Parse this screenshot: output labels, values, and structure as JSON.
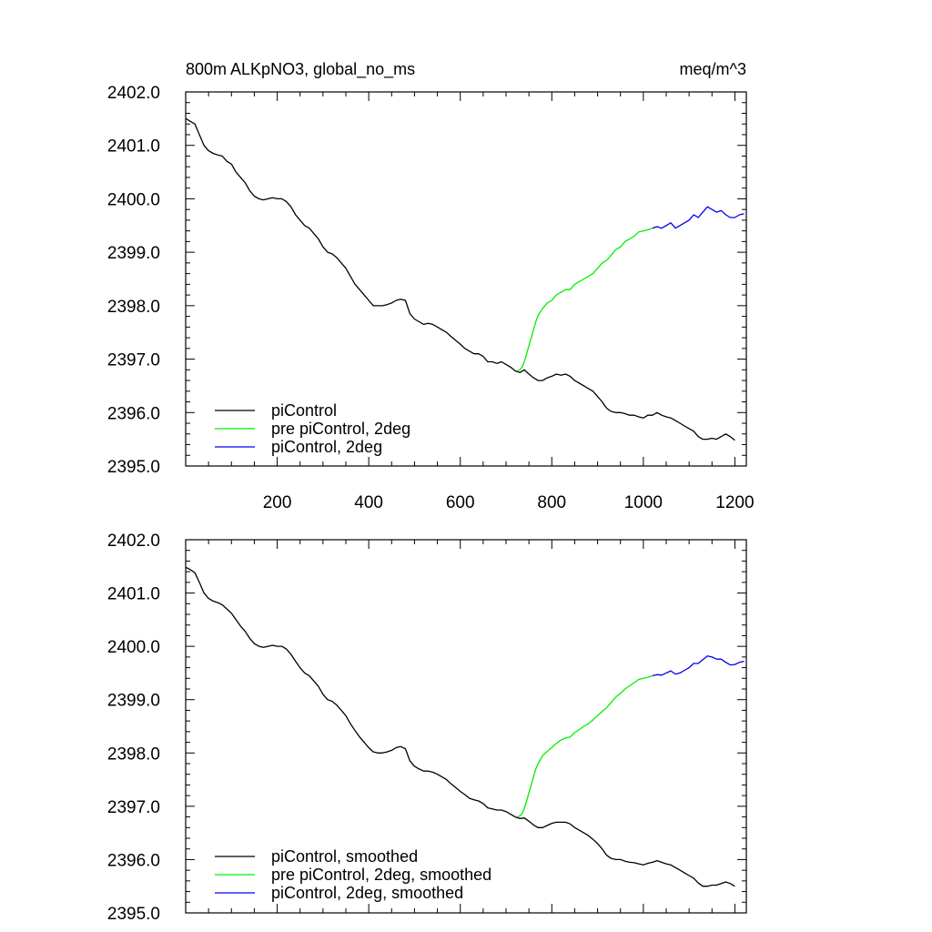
{
  "chart_data": [
    {
      "type": "line",
      "title": "800m ALKpNO3, global_no_ms",
      "units": "meq/m^3",
      "xlim": [
        0,
        1225
      ],
      "ylim": [
        2395.0,
        2402.0
      ],
      "xticks": [
        200,
        400,
        600,
        800,
        1000,
        1200
      ],
      "xtick_labels": [
        "200",
        "400",
        "600",
        "800",
        "1000",
        "1200"
      ],
      "yticks": [
        2395,
        2396,
        2397,
        2398,
        2399,
        2400,
        2401,
        2402
      ],
      "ytick_labels": [
        "2395.0",
        "2396.0",
        "2397.0",
        "2398.0",
        "2399.0",
        "2400.0",
        "2401.0",
        "2402.0"
      ],
      "legend_position": "bottom-left",
      "series": [
        {
          "name": "piControl",
          "color": "#000000",
          "x": [
            1,
            10,
            20,
            30,
            40,
            50,
            60,
            70,
            80,
            90,
            100,
            110,
            120,
            130,
            140,
            150,
            160,
            170,
            180,
            190,
            200,
            210,
            220,
            230,
            240,
            250,
            260,
            270,
            280,
            290,
            300,
            310,
            320,
            330,
            340,
            350,
            360,
            370,
            380,
            390,
            400,
            410,
            420,
            430,
            440,
            450,
            460,
            470,
            480,
            490,
            500,
            510,
            520,
            530,
            540,
            550,
            560,
            570,
            580,
            590,
            600,
            610,
            620,
            630,
            640,
            650,
            660,
            670,
            680,
            690,
            700,
            710,
            720,
            730,
            740,
            750,
            760,
            770,
            780,
            790,
            800,
            810,
            820,
            830,
            840,
            850,
            860,
            870,
            880,
            890,
            900,
            910,
            920,
            930,
            940,
            950,
            960,
            970,
            980,
            990,
            1000,
            1010,
            1020,
            1030,
            1040,
            1050,
            1060,
            1070,
            1080,
            1090,
            1100,
            1110,
            1120,
            1130,
            1140,
            1150,
            1160,
            1170,
            1180,
            1190,
            1200
          ],
          "y": [
            2401.5,
            2401.45,
            2401.4,
            2401.2,
            2401.0,
            2400.9,
            2400.85,
            2400.82,
            2400.8,
            2400.7,
            2400.65,
            2400.5,
            2400.4,
            2400.3,
            2400.15,
            2400.05,
            2400.0,
            2399.98,
            2400.0,
            2400.02,
            2400.0,
            2400.0,
            2399.95,
            2399.85,
            2399.7,
            2399.6,
            2399.5,
            2399.45,
            2399.35,
            2399.25,
            2399.1,
            2399.0,
            2398.97,
            2398.9,
            2398.8,
            2398.7,
            2398.55,
            2398.4,
            2398.3,
            2398.2,
            2398.1,
            2398.0,
            2398.0,
            2398.0,
            2398.02,
            2398.05,
            2398.1,
            2398.12,
            2398.1,
            2397.85,
            2397.75,
            2397.7,
            2397.65,
            2397.67,
            2397.65,
            2397.6,
            2397.55,
            2397.5,
            2397.42,
            2397.35,
            2397.28,
            2397.2,
            2397.15,
            2397.1,
            2397.1,
            2397.05,
            2396.95,
            2396.95,
            2396.92,
            2396.95,
            2396.9,
            2396.85,
            2396.78,
            2396.75,
            2396.8,
            2396.72,
            2396.65,
            2396.6,
            2396.6,
            2396.65,
            2396.68,
            2396.72,
            2396.7,
            2396.72,
            2396.68,
            2396.6,
            2396.55,
            2396.5,
            2396.45,
            2396.4,
            2396.3,
            2396.2,
            2396.08,
            2396.02,
            2396.0,
            2396.0,
            2395.98,
            2395.95,
            2395.95,
            2395.92,
            2395.9,
            2395.95,
            2395.95,
            2396.0,
            2395.95,
            2395.92,
            2395.9,
            2395.85,
            2395.8,
            2395.75,
            2395.7,
            2395.65,
            2395.55,
            2395.5,
            2395.5,
            2395.52,
            2395.5,
            2395.55,
            2395.6,
            2395.55,
            2395.48
          ]
        },
        {
          "name": "pre piControl, 2deg",
          "color": "#00ee00",
          "x": [
            725,
            730,
            735,
            740,
            745,
            750,
            755,
            760,
            765,
            770,
            780,
            790,
            800,
            810,
            820,
            830,
            840,
            850,
            860,
            870,
            880,
            890,
            900,
            910,
            920,
            930,
            940,
            950,
            960,
            970,
            980,
            990,
            1000,
            1010,
            1020
          ],
          "y": [
            2396.78,
            2396.8,
            2396.85,
            2396.95,
            2397.1,
            2397.25,
            2397.4,
            2397.55,
            2397.7,
            2397.82,
            2397.95,
            2398.05,
            2398.1,
            2398.2,
            2398.25,
            2398.3,
            2398.3,
            2398.4,
            2398.45,
            2398.5,
            2398.55,
            2398.6,
            2398.7,
            2398.8,
            2398.85,
            2398.95,
            2399.05,
            2399.1,
            2399.2,
            2399.25,
            2399.3,
            2399.38,
            2399.4,
            2399.42,
            2399.45
          ]
        },
        {
          "name": "piControl, 2deg",
          "color": "#0000ee",
          "x": [
            1020,
            1030,
            1040,
            1050,
            1060,
            1070,
            1080,
            1090,
            1100,
            1110,
            1120,
            1130,
            1140,
            1150,
            1160,
            1170,
            1180,
            1190,
            1200,
            1210,
            1220
          ],
          "y": [
            2399.45,
            2399.48,
            2399.45,
            2399.5,
            2399.55,
            2399.45,
            2399.5,
            2399.55,
            2399.6,
            2399.7,
            2399.65,
            2399.75,
            2399.85,
            2399.8,
            2399.75,
            2399.78,
            2399.7,
            2399.65,
            2399.65,
            2399.7,
            2399.72
          ]
        }
      ]
    },
    {
      "type": "line",
      "xlim": [
        0,
        1225
      ],
      "ylim": [
        2395.0,
        2402.0
      ],
      "xticks": [
        200,
        400,
        600,
        800,
        1000,
        1200
      ],
      "yticks": [
        2395,
        2396,
        2397,
        2398,
        2399,
        2400,
        2401,
        2402
      ],
      "ytick_labels": [
        "2395.0",
        "2396.0",
        "2397.0",
        "2398.0",
        "2399.0",
        "2400.0",
        "2401.0",
        "2402.0"
      ],
      "legend_position": "bottom-left",
      "series": [
        {
          "name": "piControl, smoothed",
          "color": "#000000",
          "x": [
            1,
            10,
            20,
            30,
            40,
            50,
            60,
            70,
            80,
            90,
            100,
            110,
            120,
            130,
            140,
            150,
            160,
            170,
            180,
            190,
            200,
            210,
            220,
            230,
            240,
            250,
            260,
            270,
            280,
            290,
            300,
            310,
            320,
            330,
            340,
            350,
            360,
            370,
            380,
            390,
            400,
            410,
            420,
            430,
            440,
            450,
            460,
            470,
            480,
            490,
            500,
            510,
            520,
            530,
            540,
            550,
            560,
            570,
            580,
            590,
            600,
            610,
            620,
            630,
            640,
            650,
            660,
            670,
            680,
            690,
            700,
            710,
            720,
            730,
            740,
            750,
            760,
            770,
            780,
            790,
            800,
            810,
            820,
            830,
            840,
            850,
            860,
            870,
            880,
            890,
            900,
            910,
            920,
            930,
            940,
            950,
            960,
            970,
            980,
            990,
            1000,
            1010,
            1020,
            1030,
            1040,
            1050,
            1060,
            1070,
            1080,
            1090,
            1100,
            1110,
            1120,
            1130,
            1140,
            1150,
            1160,
            1170,
            1180,
            1190,
            1200
          ],
          "y": [
            2401.48,
            2401.44,
            2401.38,
            2401.2,
            2401.0,
            2400.9,
            2400.85,
            2400.82,
            2400.78,
            2400.7,
            2400.62,
            2400.5,
            2400.38,
            2400.28,
            2400.15,
            2400.05,
            2400.0,
            2399.98,
            2400.0,
            2400.02,
            2400.0,
            2400.0,
            2399.95,
            2399.85,
            2399.72,
            2399.6,
            2399.5,
            2399.45,
            2399.35,
            2399.25,
            2399.1,
            2399.0,
            2398.97,
            2398.9,
            2398.8,
            2398.7,
            2398.55,
            2398.42,
            2398.3,
            2398.2,
            2398.1,
            2398.02,
            2398.0,
            2398.0,
            2398.02,
            2398.05,
            2398.1,
            2398.12,
            2398.08,
            2397.85,
            2397.75,
            2397.7,
            2397.66,
            2397.66,
            2397.64,
            2397.6,
            2397.55,
            2397.5,
            2397.42,
            2397.35,
            2397.28,
            2397.22,
            2397.15,
            2397.12,
            2397.1,
            2397.05,
            2396.97,
            2396.95,
            2396.93,
            2396.93,
            2396.9,
            2396.85,
            2396.8,
            2396.77,
            2396.78,
            2396.72,
            2396.65,
            2396.6,
            2396.6,
            2396.64,
            2396.68,
            2396.7,
            2396.7,
            2396.7,
            2396.67,
            2396.6,
            2396.55,
            2396.5,
            2396.45,
            2396.38,
            2396.3,
            2396.2,
            2396.08,
            2396.02,
            2396.0,
            2396.0,
            2395.97,
            2395.95,
            2395.94,
            2395.92,
            2395.9,
            2395.93,
            2395.95,
            2395.98,
            2395.95,
            2395.92,
            2395.9,
            2395.85,
            2395.8,
            2395.75,
            2395.7,
            2395.65,
            2395.56,
            2395.5,
            2395.5,
            2395.52,
            2395.52,
            2395.55,
            2395.58,
            2395.55,
            2395.5
          ]
        },
        {
          "name": "pre piControl, 2deg, smoothed",
          "color": "#00ee00",
          "x": [
            725,
            730,
            735,
            740,
            745,
            750,
            755,
            760,
            765,
            770,
            780,
            790,
            800,
            810,
            820,
            830,
            840,
            850,
            860,
            870,
            880,
            890,
            900,
            910,
            920,
            930,
            940,
            950,
            960,
            970,
            980,
            990,
            1000,
            1010,
            1020
          ],
          "y": [
            2396.8,
            2396.82,
            2396.86,
            2396.96,
            2397.1,
            2397.25,
            2397.4,
            2397.55,
            2397.7,
            2397.8,
            2397.95,
            2398.03,
            2398.1,
            2398.18,
            2398.24,
            2398.28,
            2398.3,
            2398.38,
            2398.44,
            2398.5,
            2398.55,
            2398.62,
            2398.7,
            2398.78,
            2398.85,
            2398.95,
            2399.05,
            2399.12,
            2399.2,
            2399.26,
            2399.32,
            2399.38,
            2399.4,
            2399.42,
            2399.45
          ]
        },
        {
          "name": "piControl, 2deg, smoothed",
          "color": "#0000ee",
          "x": [
            1020,
            1030,
            1040,
            1050,
            1060,
            1070,
            1080,
            1090,
            1100,
            1110,
            1120,
            1130,
            1140,
            1150,
            1160,
            1170,
            1180,
            1190,
            1200,
            1210,
            1220
          ],
          "y": [
            2399.45,
            2399.47,
            2399.46,
            2399.5,
            2399.54,
            2399.48,
            2399.5,
            2399.55,
            2399.6,
            2399.68,
            2399.68,
            2399.75,
            2399.82,
            2399.8,
            2399.76,
            2399.76,
            2399.7,
            2399.65,
            2399.66,
            2399.7,
            2399.72
          ]
        }
      ]
    }
  ]
}
